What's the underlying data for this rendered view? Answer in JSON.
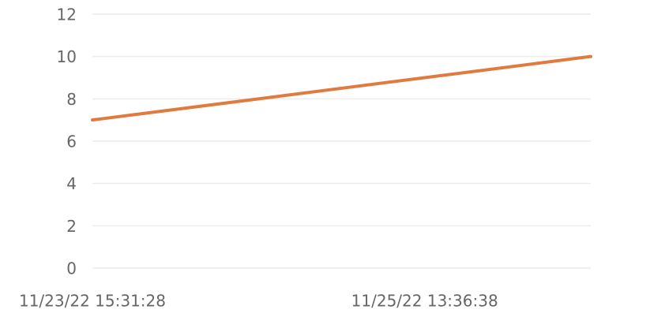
{
  "chart_data": {
    "type": "line",
    "categories": [
      "11/23/22 15:31:28",
      null,
      "11/25/22 13:36:38",
      null
    ],
    "series": [
      {
        "color": "#e07a3e",
        "values": [
          7,
          8,
          9,
          10
        ]
      }
    ],
    "ylim": [
      0,
      12
    ],
    "yticks": [
      0,
      2,
      4,
      6,
      8,
      10,
      12
    ],
    "grid": true
  }
}
